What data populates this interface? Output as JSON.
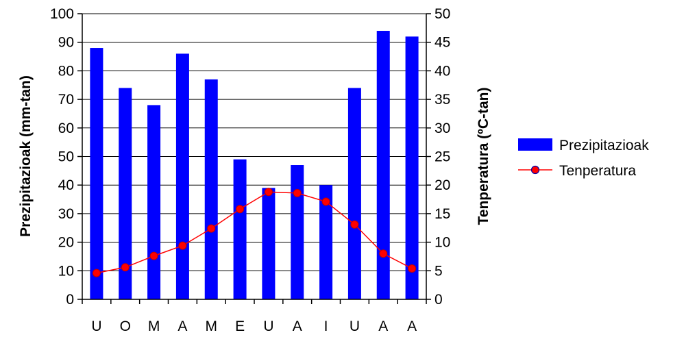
{
  "chart_data": {
    "type": "bar+line",
    "categories": [
      "U",
      "O",
      "M",
      "A",
      "M",
      "E",
      "U",
      "A",
      "I",
      "U",
      "A",
      "A"
    ],
    "series": [
      {
        "name": "Prezipitazioak",
        "type": "bar",
        "axis": "left",
        "values": [
          88,
          74,
          68,
          86,
          77,
          49,
          39,
          47,
          40,
          74,
          94,
          92
        ]
      },
      {
        "name": "Tenperatura",
        "type": "line",
        "axis": "right",
        "values": [
          4.6,
          5.6,
          7.6,
          9.4,
          12.4,
          15.8,
          18.8,
          18.6,
          17.1,
          13.1,
          8.0,
          5.4
        ]
      }
    ],
    "ylabel_left": "Prezipitazioak (mm-tan)",
    "ylabel_right": "Tenperatura (ºC-tan)",
    "ylim_left": [
      0,
      100
    ],
    "ylim_right": [
      0,
      50
    ],
    "yticks_left": [
      "0",
      "10",
      "20",
      "30",
      "40",
      "50",
      "60",
      "70",
      "80",
      "90",
      "100"
    ],
    "yticks_right": [
      "0",
      "5",
      "10",
      "15",
      "20",
      "25",
      "30",
      "35",
      "40",
      "45",
      "50"
    ],
    "grid": true,
    "legend_position": "right",
    "colors": {
      "bar": "#0000ff",
      "line": "#ff0000",
      "marker_fill": "#ff0000",
      "marker_edge": "#c00000",
      "grid": "#000000"
    }
  }
}
